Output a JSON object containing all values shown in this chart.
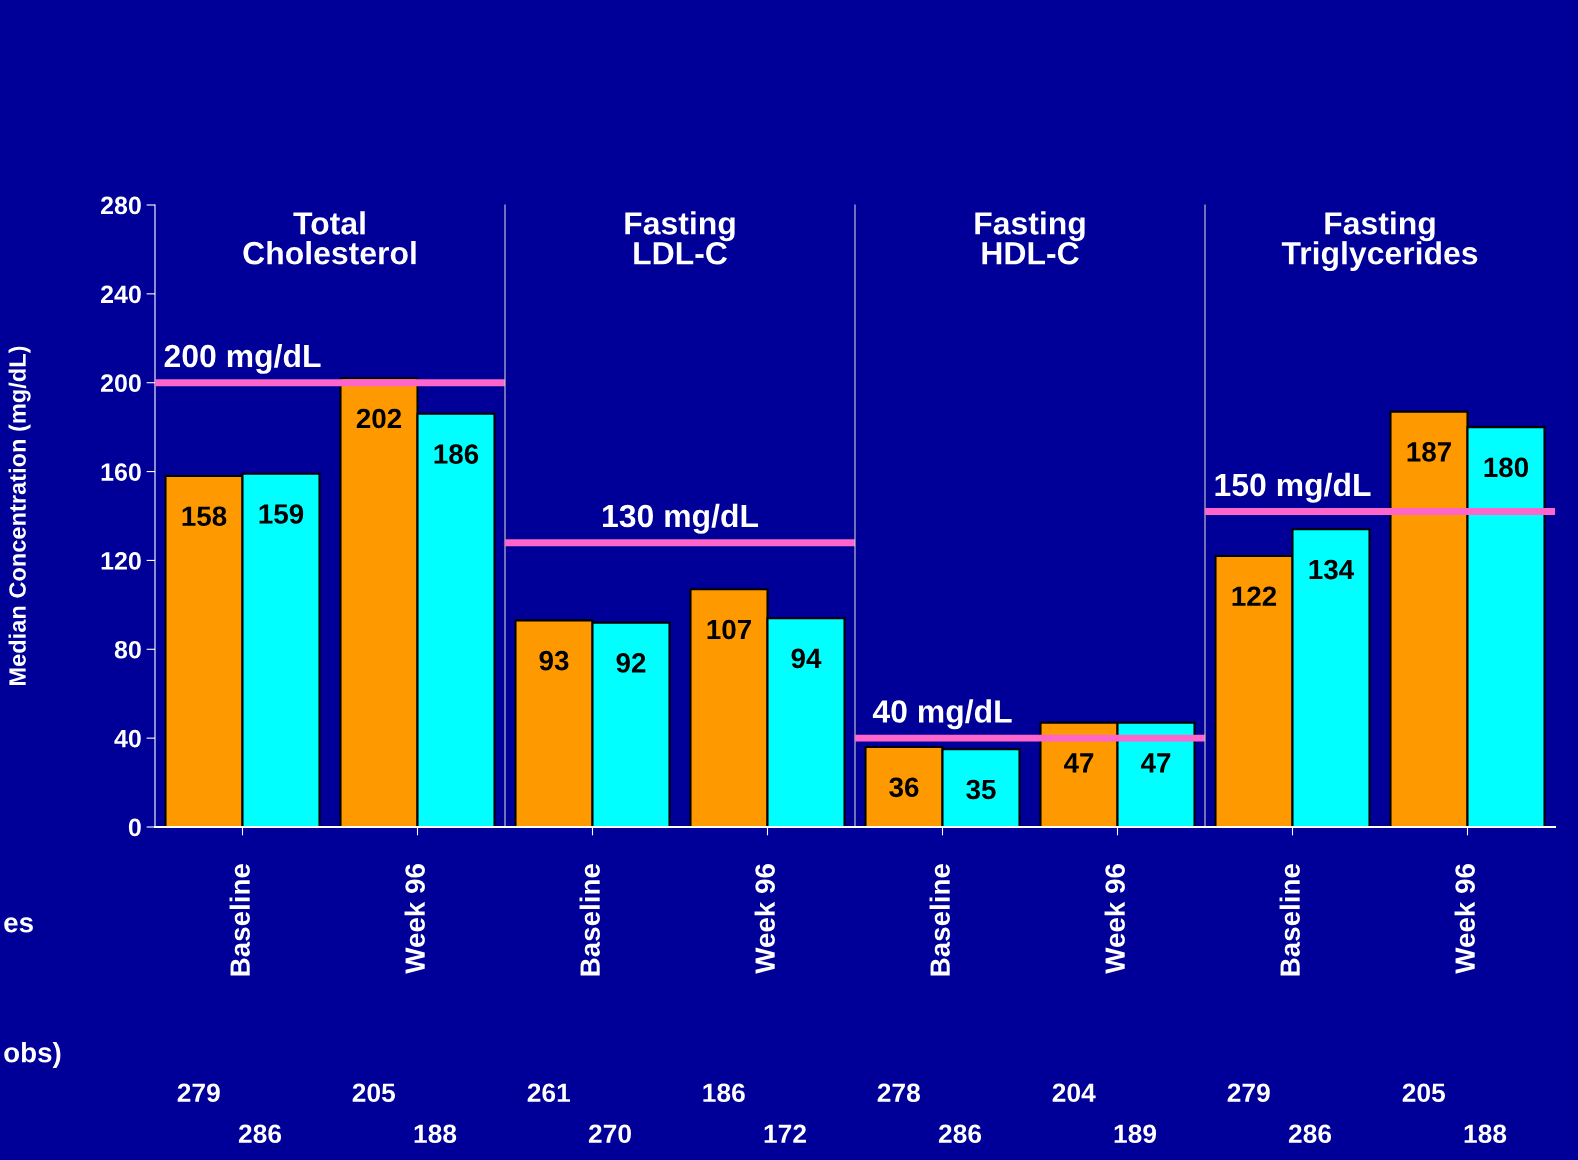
{
  "chart_data": [
    {
      "type": "bar",
      "title": "Total\nCholesterol",
      "ylabel": "Median Concentration (mg/dL)",
      "categories": [
        "Baseline",
        "Week 96"
      ],
      "series": [
        {
          "color": "#ff9900",
          "values": [
            158,
            202
          ]
        },
        {
          "color": "#00ffff",
          "values": [
            159,
            186
          ]
        }
      ],
      "ylim": [
        0,
        280
      ],
      "yticks": [
        0,
        40,
        80,
        120,
        160,
        200,
        240,
        280
      ],
      "data_labels": true,
      "ref_lines": [
        {
          "axis": "y",
          "value": 200,
          "label": "200 mg/dL",
          "color": "#ff66cc"
        }
      ],
      "annotations": [
        "279",
        "205",
        "286",
        "188",
        "es",
        "obs)"
      ]
    },
    {
      "type": "bar",
      "title": "Fasting\nLDL-C",
      "categories": [
        "Baseline",
        "Week 96"
      ],
      "series": [
        {
          "color": "#ff9900",
          "values": [
            93,
            107
          ]
        },
        {
          "color": "#00ffff",
          "values": [
            92,
            94
          ]
        }
      ],
      "ylim": [
        0,
        280
      ],
      "tick_labels": "x",
      "data_labels": true,
      "ref_lines": [
        {
          "axis": "y",
          "value": 128,
          "label": "130 mg/dL",
          "color": "#ff66cc"
        }
      ],
      "annotations": [
        "261",
        "186",
        "270",
        "172"
      ]
    },
    {
      "type": "bar",
      "title": "Fasting\nHDL-C",
      "categories": [
        "Baseline",
        "Week 96"
      ],
      "series": [
        {
          "color": "#ff9900",
          "values": [
            36,
            47
          ]
        },
        {
          "color": "#00ffff",
          "values": [
            35,
            47
          ]
        }
      ],
      "ylim": [
        0,
        280
      ],
      "tick_labels": "x",
      "data_labels": true,
      "ref_lines": [
        {
          "axis": "y",
          "value": 40,
          "label": "40 mg/dL",
          "color": "#ff66cc"
        }
      ],
      "annotations": [
        "278",
        "204",
        "286",
        "189"
      ]
    },
    {
      "type": "bar",
      "title": "Fasting\nTriglycerides",
      "categories": [
        "Baseline",
        "Week 96"
      ],
      "series": [
        {
          "color": "#ff9900",
          "values": [
            122,
            187
          ]
        },
        {
          "color": "#00ffff",
          "values": [
            134,
            180
          ]
        }
      ],
      "ylim": [
        0,
        280
      ],
      "tick_labels": "x",
      "data_labels": true,
      "ref_lines": [
        {
          "axis": "y",
          "value": 142,
          "label": "150 mg/dL",
          "color": "#ff66cc"
        }
      ],
      "annotations": [
        "279",
        "205",
        "286",
        "188"
      ]
    }
  ]
}
